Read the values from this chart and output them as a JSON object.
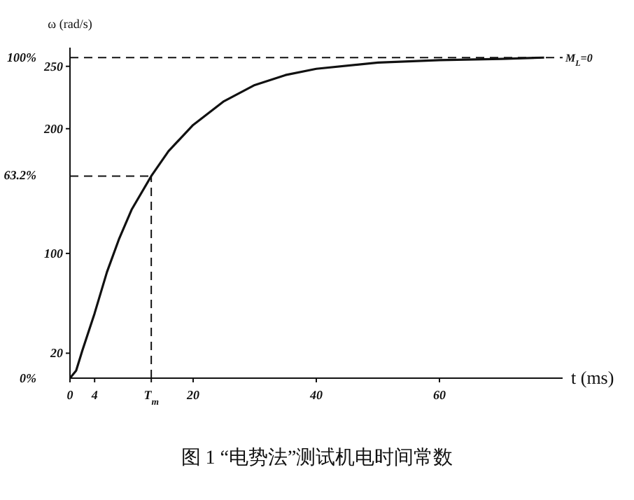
{
  "chart_data": {
    "type": "line",
    "title": "图 1 “电势法”测试机电时间常数",
    "xlabel": "t (ms)",
    "ylabel": "ω (rad/s)",
    "x": [
      0,
      1,
      2,
      4,
      6,
      8,
      10,
      13.2,
      16,
      20,
      25,
      30,
      35,
      40,
      50,
      60,
      70,
      77
    ],
    "series": [
      {
        "color": "#111111",
        "values": [
          0,
          6,
          22,
          52,
          85,
          112,
          135,
          162,
          182,
          203,
          222,
          235,
          243,
          248,
          253,
          255,
          256,
          257
        ]
      }
    ],
    "xlim": [
      0,
      80
    ],
    "xticks": [
      0,
      4,
      {
        "value": 13.2,
        "label": "T$_{m}$"
      },
      20,
      40,
      60
    ],
    "ylim": [
      0,
      265
    ],
    "yticks": [
      20,
      100,
      200,
      250
    ],
    "y2lim": [
      0,
      103
    ],
    "y2ticks": [
      {
        "value": 0,
        "label": "0%"
      },
      {
        "value": 63.2,
        "label": "63.2%"
      },
      {
        "value": 100,
        "label": "100%"
      }
    ],
    "ref_lines": [
      {
        "axis": "y",
        "value": 257,
        "line_style": "dashed",
        "color": "#111111"
      },
      {
        "axis": "y",
        "value": 162,
        "line_style": "dashed",
        "color": "#111111"
      },
      {
        "axis": "x",
        "value": 13.2,
        "line_style": "dashed",
        "color": "#111111"
      }
    ],
    "annotations": [
      {
        "text": "M$_{L}$=0",
        "x": 80,
        "y": 257
      }
    ],
    "grid": false,
    "legend": false,
    "marker": "none",
    "line_style": "solid"
  }
}
